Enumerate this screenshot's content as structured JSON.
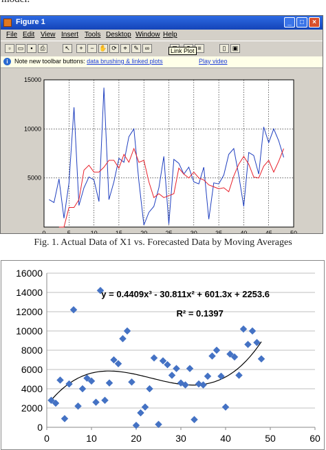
{
  "page": {
    "top_text": "model.",
    "caption": "Fig. 1.   Actual Data of X1 vs. Forecasted Data by Moving Averages"
  },
  "window": {
    "title": "Figure 1",
    "menu": [
      "File",
      "Edit",
      "View",
      "Insert",
      "Tools",
      "Desktop",
      "Window",
      "Help"
    ],
    "note_prefix": "Note new toolbar buttons:",
    "note_link1": "data brushing & linked plots",
    "note_link2": "Play video",
    "tooltip": "Link Plot",
    "buttons": {
      "minimize": "_",
      "maximize": "□",
      "close": "×"
    },
    "title_icon": "matlab-icon",
    "info_icon": "info-icon"
  },
  "chart_data": [
    {
      "type": "line",
      "title": "",
      "xlabel": "",
      "ylabel": "",
      "xlim": [
        0,
        50
      ],
      "ylim": [
        0,
        15000
      ],
      "xticks": [
        0,
        5,
        10,
        15,
        20,
        25,
        30,
        35,
        40,
        45,
        50
      ],
      "yticks": [
        5000,
        10000,
        15000
      ],
      "grid": true,
      "series": [
        {
          "name": "",
          "color": "#1f3fbf",
          "x": [
            1,
            2,
            3,
            4,
            5,
            6,
            7,
            8,
            9,
            10,
            11,
            12,
            13,
            14,
            15,
            16,
            17,
            18,
            19,
            20,
            21,
            22,
            23,
            24,
            25,
            26,
            27,
            28,
            29,
            30,
            31,
            32,
            33,
            34,
            35,
            36,
            37,
            38,
            39,
            40,
            41,
            42,
            43,
            44,
            45,
            46,
            47,
            48
          ],
          "y": [
            2800,
            2500,
            4900,
            900,
            4500,
            12200,
            2200,
            4000,
            5100,
            4800,
            2600,
            14200,
            2800,
            4600,
            7000,
            6600,
            9200,
            10000,
            4700,
            200,
            1500,
            2100,
            4000,
            7200,
            300,
            6900,
            6500,
            5400,
            6100,
            4600,
            4400,
            6100,
            800,
            4500,
            4400,
            5300,
            7400,
            8000,
            5300,
            2100,
            7600,
            7300,
            5400,
            10200,
            8600,
            10000,
            8800,
            7100
          ]
        },
        {
          "name": "",
          "color": "#e8202a",
          "x": [
            3,
            4,
            5,
            6,
            7,
            8,
            9,
            10,
            11,
            12,
            13,
            14,
            15,
            16,
            17,
            18,
            19,
            20,
            21,
            22,
            23,
            24,
            25,
            26,
            27,
            28,
            29,
            30,
            31,
            32,
            33,
            34,
            35,
            36,
            37,
            38,
            39,
            40,
            41,
            42,
            43,
            44,
            45,
            46,
            47,
            48
          ],
          "y": [
            0,
            0,
            2000,
            2000,
            2800,
            5800,
            6300,
            5600,
            5600,
            6100,
            6800,
            6800,
            6000,
            7400,
            6600,
            8000,
            6600,
            6800,
            4600,
            3000,
            3400,
            3000,
            3200,
            3400,
            6000,
            5400,
            5000,
            5600,
            5000,
            4800,
            4300,
            4100,
            3900,
            4000,
            3600,
            5200,
            6400,
            7200,
            6400,
            5100,
            5000,
            6200,
            6800,
            5600,
            6700,
            8000
          ]
        }
      ]
    },
    {
      "type": "scatter",
      "title": "",
      "xlabel": "",
      "ylabel": "",
      "xlim": [
        0,
        60
      ],
      "ylim": [
        0,
        16000
      ],
      "xticks": [
        0,
        10,
        20,
        30,
        40,
        50,
        60
      ],
      "yticks": [
        0,
        2000,
        4000,
        6000,
        8000,
        10000,
        12000,
        14000,
        16000
      ],
      "grid": true,
      "equation": "y = 0.4409x³ - 30.811x² + 601.3x + 2253.6",
      "r_squared": "R² = 0.1397",
      "series": [
        {
          "name": "",
          "color": "#4472c4",
          "marker": "diamond",
          "x": [
            1,
            2,
            3,
            4,
            5,
            6,
            7,
            8,
            9,
            10,
            11,
            12,
            13,
            14,
            15,
            16,
            17,
            18,
            19,
            20,
            21,
            22,
            23,
            24,
            25,
            26,
            27,
            28,
            29,
            30,
            31,
            32,
            33,
            34,
            35,
            36,
            37,
            38,
            39,
            40,
            41,
            42,
            43,
            44,
            45,
            46,
            47,
            48
          ],
          "y": [
            2800,
            2500,
            4900,
            900,
            4500,
            12200,
            2200,
            4000,
            5100,
            4800,
            2600,
            14200,
            2800,
            4600,
            7000,
            6600,
            9200,
            10000,
            4700,
            200,
            1500,
            2100,
            4000,
            7200,
            300,
            6900,
            6500,
            5400,
            6100,
            4600,
            4400,
            6100,
            800,
            4500,
            4400,
            5300,
            7400,
            8000,
            5300,
            2100,
            7600,
            7300,
            5400,
            10200,
            8600,
            10000,
            8800,
            7100
          ]
        }
      ],
      "trendline": {
        "type": "polynomial",
        "order": 3,
        "coefficients": [
          2253.6,
          601.3,
          -30.811,
          0.4409
        ],
        "color": "#000000"
      }
    }
  ]
}
